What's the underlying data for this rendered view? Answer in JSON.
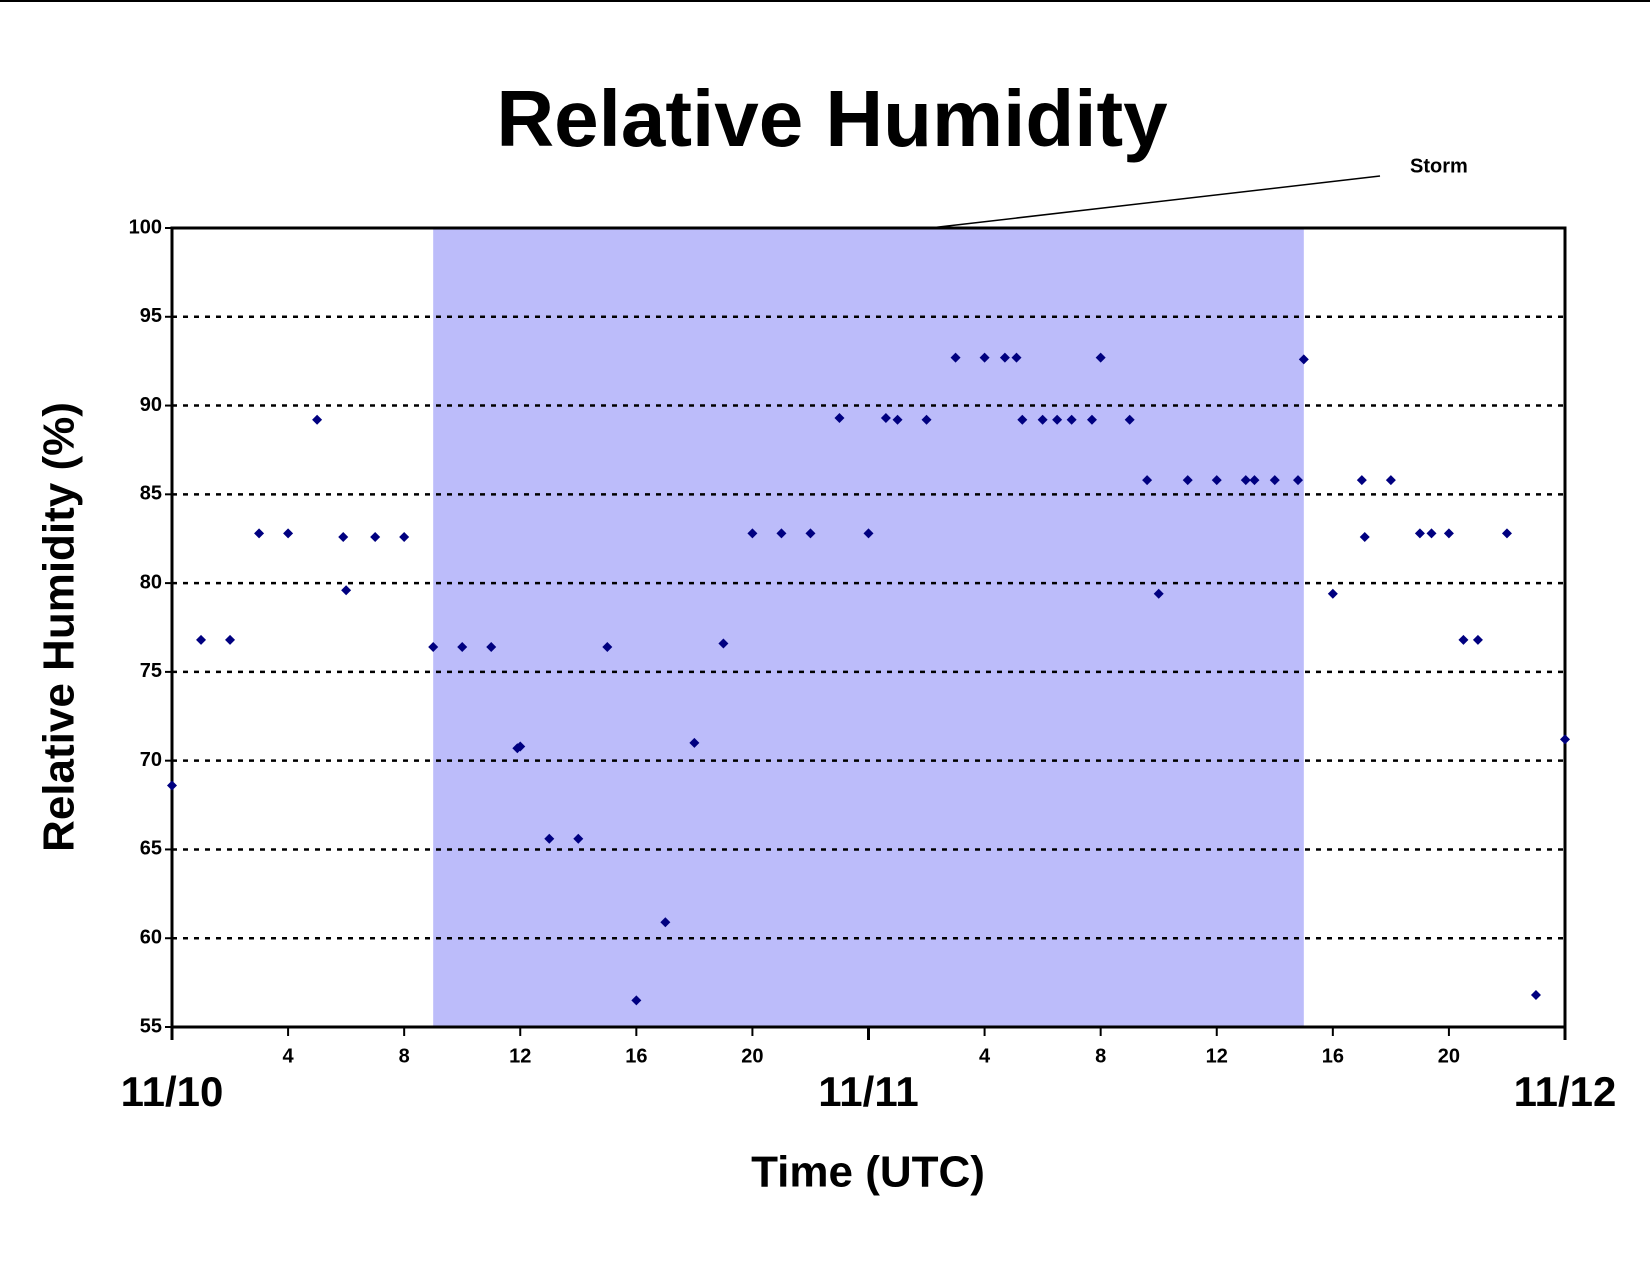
{
  "chart_data": {
    "type": "scatter",
    "title": "Relative Humidity",
    "x_label": "Time (UTC)",
    "y_label": "Relative Humidity (%)",
    "shaded_region": {
      "label": "Storm",
      "x": [
        9,
        39
      ],
      "color": "#bcbcfa"
    },
    "series": [
      {
        "color": "#000080",
        "x": [
          0,
          1,
          2,
          3,
          4,
          5,
          5.9,
          6,
          7,
          8,
          9,
          10,
          11,
          11.9,
          12,
          13,
          14,
          15,
          16,
          17,
          18,
          19,
          20,
          21,
          22,
          23,
          24,
          24.6,
          25,
          26,
          27,
          28,
          28.7,
          29.1,
          29.3,
          30,
          30.5,
          31,
          31.7,
          32,
          33,
          33.6,
          34,
          35,
          36,
          37,
          37.3,
          38,
          38.8,
          39,
          40,
          41,
          41.1,
          42,
          43,
          43.4,
          44,
          44.5,
          45,
          46,
          47,
          48
        ],
        "values": [
          68.6,
          76.8,
          76.8,
          82.8,
          82.8,
          89.2,
          82.6,
          79.6,
          82.6,
          82.6,
          76.4,
          76.4,
          76.4,
          70.7,
          70.8,
          65.6,
          65.6,
          76.4,
          56.5,
          60.9,
          71.0,
          76.6,
          82.8,
          82.8,
          82.8,
          89.3,
          82.8,
          89.3,
          89.2,
          89.2,
          92.7,
          92.7,
          92.7,
          92.7,
          89.2,
          89.2,
          89.2,
          89.2,
          89.2,
          92.7,
          89.2,
          85.8,
          79.4,
          85.8,
          85.8,
          85.8,
          85.8,
          85.8,
          85.8,
          92.6,
          79.4,
          85.8,
          82.6,
          85.8,
          82.8,
          82.8,
          82.8,
          76.8,
          76.8,
          82.8,
          56.8,
          71.2
        ]
      }
    ],
    "xlim": [
      0,
      48
    ],
    "xticks": [
      4,
      8,
      12,
      16,
      20,
      {
        "value": 28,
        "label": "4"
      },
      {
        "value": 32,
        "label": "8"
      },
      {
        "value": 36,
        "label": "12"
      },
      {
        "value": 40,
        "label": "16"
      },
      {
        "value": 44,
        "label": "20"
      }
    ],
    "day_labels": [
      {
        "value": 0,
        "label": "11/10"
      },
      {
        "value": 24,
        "label": "11/11"
      },
      {
        "value": 48,
        "label": "11/12"
      }
    ],
    "ylim": [
      55,
      100
    ],
    "yticks": [
      55,
      60,
      65,
      70,
      75,
      80,
      85,
      90,
      95,
      100
    ],
    "grid": true
  }
}
